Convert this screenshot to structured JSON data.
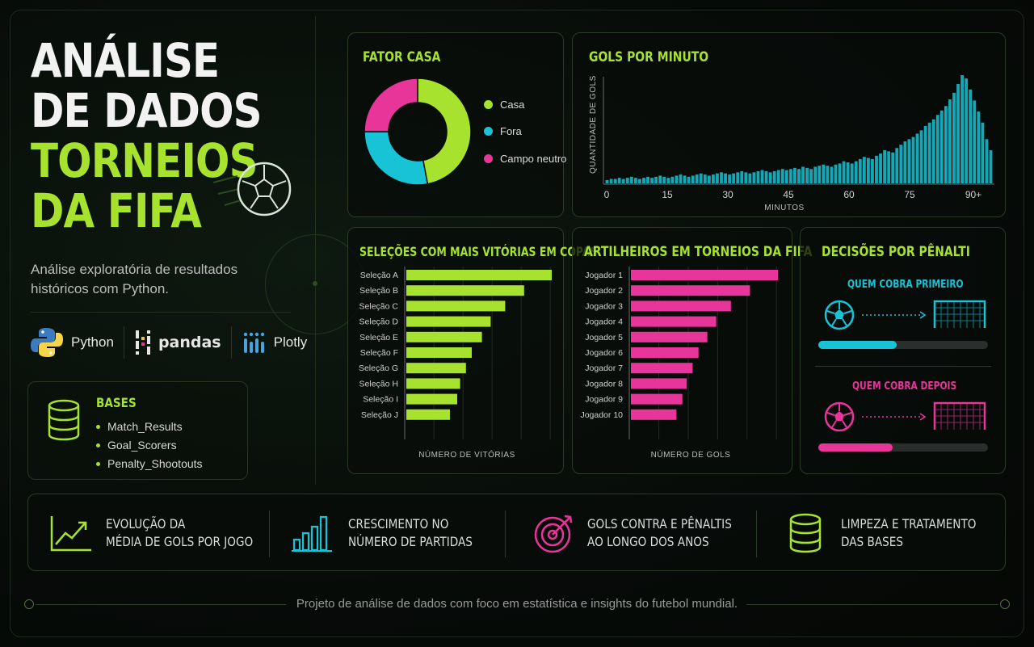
{
  "title": {
    "line1": "ANÁLISE",
    "line2": "DE DADOS",
    "line3": "TORNEIOS",
    "line4": "DA FIFA"
  },
  "subtitle": "Análise exploratória de resultados históricos com Python.",
  "tools": [
    {
      "name": "Python",
      "icon": "python-logo"
    },
    {
      "name": "pandas",
      "icon": "pandas-logo"
    },
    {
      "name": "Plotly",
      "icon": "plotly-logo"
    }
  ],
  "bases": {
    "title": "BASES",
    "items": [
      "Match_Results",
      "Goal_Scorers",
      "Penalty_Shootouts"
    ],
    "icon": "database-icon"
  },
  "colors": {
    "green": "#a6e22e",
    "cyan": "#19c3d6",
    "pink": "#e8359a"
  },
  "home_factor": {
    "title": "FATOR CASA",
    "legend": [
      "Casa",
      "Fora",
      "Campo neutro"
    ]
  },
  "goals_per_minute": {
    "title": "GOLS POR MINUTO",
    "ylabel": "QUANTIDADE DE GOLS",
    "xlabel": "MINUTOS",
    "ticks": [
      "0",
      "15",
      "30",
      "45",
      "60",
      "75",
      "90+"
    ]
  },
  "team_wins": {
    "title": "SELEÇÕES COM MAIS VITÓRIAS EM COPAS",
    "xlabel": "NÚMERO DE VITÓRIAS"
  },
  "top_scorers": {
    "title": "ARTILHEIROS EM TORNEIOS DA FIFA",
    "xlabel": "NÚMERO DE GOLS"
  },
  "penalties": {
    "title": "DECISÕES POR PÊNALTI",
    "first": {
      "label": "QUEM COBRA PRIMEIRO",
      "level": 0.46
    },
    "second": {
      "label": "QUEM COBRA DEPOIS",
      "level": 0.44
    }
  },
  "features": [
    {
      "line1": "EVOLUÇÃO DA",
      "line2": "MÉDIA DE GOLS POR JOGO",
      "icon": "trend-up-icon"
    },
    {
      "line1": "CRESCIMENTO NO",
      "line2": "NÚMERO DE PARTIDAS",
      "icon": "bar-growth-icon"
    },
    {
      "line1": "GOLS CONTRA E PÊNALTIS",
      "line2": "AO LONGO DOS ANOS",
      "icon": "target-icon"
    },
    {
      "line1": "LIMPEZA E TRATAMENTO",
      "line2": "DAS BASES",
      "icon": "database-icon"
    }
  ],
  "footer": "Projeto de análise de dados com foco em estatística e insights do futebol mundial.",
  "chart_data": [
    {
      "type": "pie",
      "title": "FATOR CASA",
      "categories": [
        "Casa",
        "Fora",
        "Campo neutro"
      ],
      "values": [
        47,
        28,
        25
      ],
      "donut": true
    },
    {
      "type": "bar",
      "title": "GOLS POR MINUTO",
      "ylabel": "QUANTIDADE DE GOLS",
      "xlabel": "MINUTOS",
      "xticks": [
        "0",
        "15",
        "30",
        "45",
        "60",
        "75",
        "90+"
      ],
      "values": [
        3,
        4,
        4,
        5,
        4,
        5,
        6,
        5,
        4,
        5,
        6,
        5,
        6,
        7,
        6,
        5,
        6,
        7,
        8,
        7,
        6,
        7,
        8,
        9,
        8,
        7,
        8,
        9,
        10,
        9,
        8,
        9,
        10,
        11,
        10,
        9,
        10,
        11,
        12,
        11,
        10,
        11,
        12,
        13,
        12,
        13,
        14,
        13,
        15,
        14,
        13,
        15,
        16,
        17,
        16,
        15,
        17,
        18,
        20,
        19,
        18,
        20,
        22,
        24,
        23,
        22,
        25,
        27,
        30,
        29,
        28,
        32,
        35,
        38,
        40,
        42,
        45,
        48,
        52,
        55,
        58,
        62,
        66,
        70,
        76,
        82,
        90,
        98,
        95,
        85,
        75,
        65,
        55,
        40,
        30
      ]
    },
    {
      "type": "bar",
      "title": "SELEÇÕES COM MAIS VITÓRIAS EM COPAS",
      "xlabel": "NÚMERO DE VITÓRIAS",
      "orientation": "horizontal",
      "categories": [
        "Seleção A",
        "Seleção B",
        "Seleção C",
        "Seleção D",
        "Seleção E",
        "Seleção F",
        "Seleção G",
        "Seleção H",
        "Seleção I",
        "Seleção J"
      ],
      "values": [
        100,
        81,
        68,
        58,
        52,
        45,
        41,
        37,
        35,
        30
      ]
    },
    {
      "type": "bar",
      "title": "ARTILHEIROS EM TORNEIOS DA FIFA",
      "xlabel": "NÚMERO DE GOLS",
      "orientation": "horizontal",
      "categories": [
        "Jogador 1",
        "Jogador 2",
        "Jogador 3",
        "Jogador 4",
        "Jogador 5",
        "Jogador 6",
        "Jogador 7",
        "Jogador 8",
        "Jogador 9",
        "Jogador 10"
      ],
      "values": [
        100,
        81,
        68,
        58,
        52,
        46,
        42,
        38,
        35,
        31
      ]
    }
  ]
}
